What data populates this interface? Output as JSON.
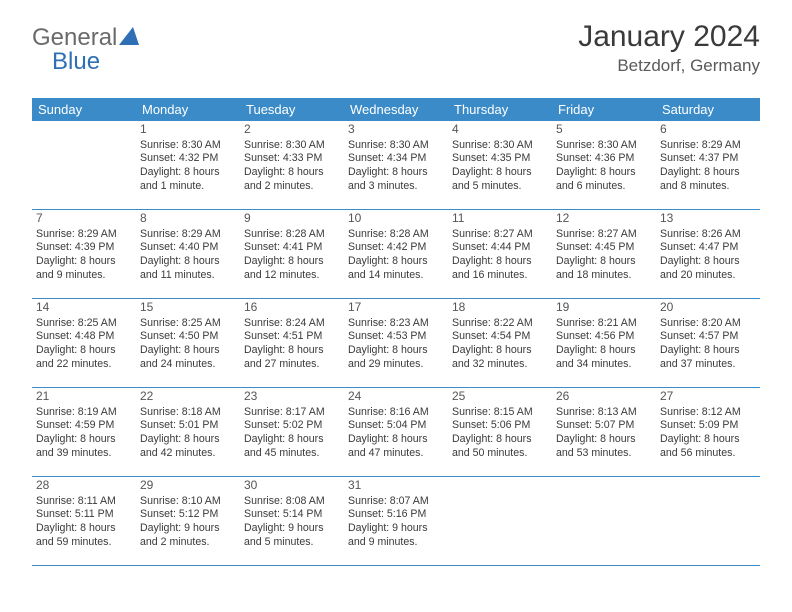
{
  "logo": {
    "text1": "General",
    "text2": "Blue"
  },
  "title": "January 2024",
  "location": "Betzdorf, Germany",
  "colors": {
    "header_bg": "#3b8bc9",
    "header_text": "#ffffff",
    "border": "#3b8bc9",
    "text": "#3a3a3a",
    "logo_gray": "#6a6a6a",
    "logo_blue": "#2e6fb5"
  },
  "days_of_week": [
    "Sunday",
    "Monday",
    "Tuesday",
    "Wednesday",
    "Thursday",
    "Friday",
    "Saturday"
  ],
  "weeks": [
    [
      null,
      {
        "n": "1",
        "sr": "8:30 AM",
        "ss": "4:32 PM",
        "dl": "8 hours and 1 minute."
      },
      {
        "n": "2",
        "sr": "8:30 AM",
        "ss": "4:33 PM",
        "dl": "8 hours and 2 minutes."
      },
      {
        "n": "3",
        "sr": "8:30 AM",
        "ss": "4:34 PM",
        "dl": "8 hours and 3 minutes."
      },
      {
        "n": "4",
        "sr": "8:30 AM",
        "ss": "4:35 PM",
        "dl": "8 hours and 5 minutes."
      },
      {
        "n": "5",
        "sr": "8:30 AM",
        "ss": "4:36 PM",
        "dl": "8 hours and 6 minutes."
      },
      {
        "n": "6",
        "sr": "8:29 AM",
        "ss": "4:37 PM",
        "dl": "8 hours and 8 minutes."
      }
    ],
    [
      {
        "n": "7",
        "sr": "8:29 AM",
        "ss": "4:39 PM",
        "dl": "8 hours and 9 minutes."
      },
      {
        "n": "8",
        "sr": "8:29 AM",
        "ss": "4:40 PM",
        "dl": "8 hours and 11 minutes."
      },
      {
        "n": "9",
        "sr": "8:28 AM",
        "ss": "4:41 PM",
        "dl": "8 hours and 12 minutes."
      },
      {
        "n": "10",
        "sr": "8:28 AM",
        "ss": "4:42 PM",
        "dl": "8 hours and 14 minutes."
      },
      {
        "n": "11",
        "sr": "8:27 AM",
        "ss": "4:44 PM",
        "dl": "8 hours and 16 minutes."
      },
      {
        "n": "12",
        "sr": "8:27 AM",
        "ss": "4:45 PM",
        "dl": "8 hours and 18 minutes."
      },
      {
        "n": "13",
        "sr": "8:26 AM",
        "ss": "4:47 PM",
        "dl": "8 hours and 20 minutes."
      }
    ],
    [
      {
        "n": "14",
        "sr": "8:25 AM",
        "ss": "4:48 PM",
        "dl": "8 hours and 22 minutes."
      },
      {
        "n": "15",
        "sr": "8:25 AM",
        "ss": "4:50 PM",
        "dl": "8 hours and 24 minutes."
      },
      {
        "n": "16",
        "sr": "8:24 AM",
        "ss": "4:51 PM",
        "dl": "8 hours and 27 minutes."
      },
      {
        "n": "17",
        "sr": "8:23 AM",
        "ss": "4:53 PM",
        "dl": "8 hours and 29 minutes."
      },
      {
        "n": "18",
        "sr": "8:22 AM",
        "ss": "4:54 PM",
        "dl": "8 hours and 32 minutes."
      },
      {
        "n": "19",
        "sr": "8:21 AM",
        "ss": "4:56 PM",
        "dl": "8 hours and 34 minutes."
      },
      {
        "n": "20",
        "sr": "8:20 AM",
        "ss": "4:57 PM",
        "dl": "8 hours and 37 minutes."
      }
    ],
    [
      {
        "n": "21",
        "sr": "8:19 AM",
        "ss": "4:59 PM",
        "dl": "8 hours and 39 minutes."
      },
      {
        "n": "22",
        "sr": "8:18 AM",
        "ss": "5:01 PM",
        "dl": "8 hours and 42 minutes."
      },
      {
        "n": "23",
        "sr": "8:17 AM",
        "ss": "5:02 PM",
        "dl": "8 hours and 45 minutes."
      },
      {
        "n": "24",
        "sr": "8:16 AM",
        "ss": "5:04 PM",
        "dl": "8 hours and 47 minutes."
      },
      {
        "n": "25",
        "sr": "8:15 AM",
        "ss": "5:06 PM",
        "dl": "8 hours and 50 minutes."
      },
      {
        "n": "26",
        "sr": "8:13 AM",
        "ss": "5:07 PM",
        "dl": "8 hours and 53 minutes."
      },
      {
        "n": "27",
        "sr": "8:12 AM",
        "ss": "5:09 PM",
        "dl": "8 hours and 56 minutes."
      }
    ],
    [
      {
        "n": "28",
        "sr": "8:11 AM",
        "ss": "5:11 PM",
        "dl": "8 hours and 59 minutes."
      },
      {
        "n": "29",
        "sr": "8:10 AM",
        "ss": "5:12 PM",
        "dl": "9 hours and 2 minutes."
      },
      {
        "n": "30",
        "sr": "8:08 AM",
        "ss": "5:14 PM",
        "dl": "9 hours and 5 minutes."
      },
      {
        "n": "31",
        "sr": "8:07 AM",
        "ss": "5:16 PM",
        "dl": "9 hours and 9 minutes."
      },
      null,
      null,
      null
    ]
  ],
  "labels": {
    "sunrise": "Sunrise:",
    "sunset": "Sunset:",
    "daylight": "Daylight:"
  }
}
